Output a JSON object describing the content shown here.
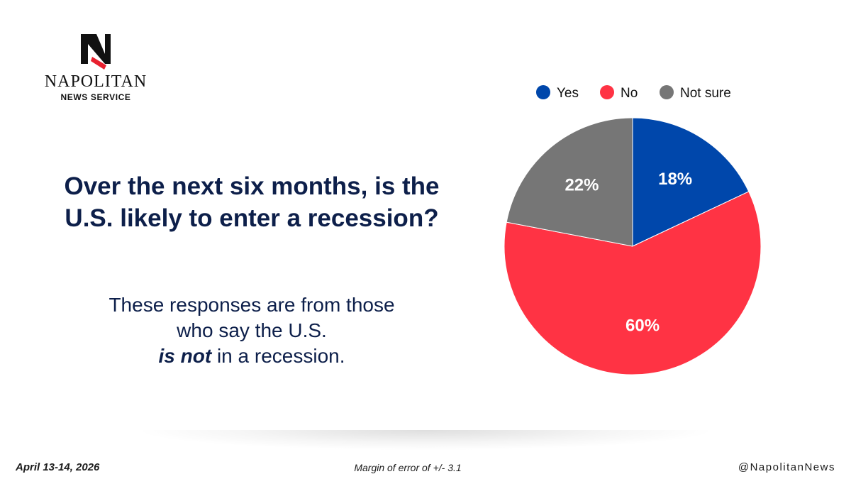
{
  "brand": {
    "name": "NAPOLITAN",
    "subname": "NEWS SERVICE"
  },
  "question": "Over the next six months, is the U.S. likely to enter a recession?",
  "subtext": {
    "line1": "These responses are from those",
    "line2": "who say the U.S.",
    "emphasis": "is not",
    "tail": " in a recession."
  },
  "footer": {
    "date": "April 13-14, 2026",
    "moe": "Margin of error of +/- 3.1",
    "handle": "@NapolitanNews"
  },
  "chart_data": {
    "type": "pie",
    "categories": [
      "Yes",
      "No",
      "Not sure"
    ],
    "values": [
      18,
      60,
      22
    ],
    "labels": [
      "18%",
      "60%",
      "22%"
    ],
    "colors": [
      "#0047ab",
      "#ff3344",
      "#767676"
    ],
    "legend": "top",
    "title": ""
  }
}
